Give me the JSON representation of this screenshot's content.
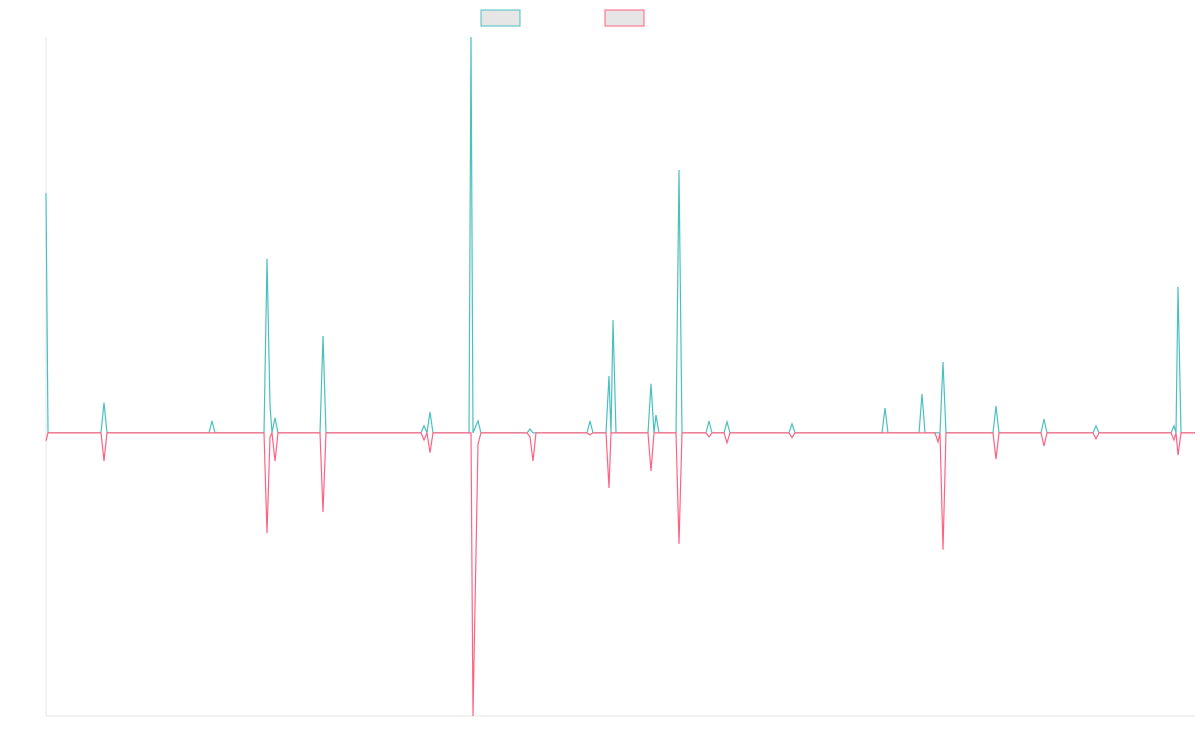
{
  "chart_data": {
    "type": "line",
    "x": [
      0,
      2,
      55,
      58,
      61,
      163,
      166,
      169,
      218,
      221,
      224,
      226,
      229,
      232,
      274,
      277,
      280,
      375,
      378,
      381,
      384,
      387,
      423,
      425,
      427,
      432,
      435,
      481,
      484,
      487,
      490,
      541,
      544,
      547,
      560,
      563,
      565,
      567,
      570,
      602,
      605,
      608,
      610,
      613,
      630,
      633,
      636,
      660,
      663,
      666,
      678,
      681,
      684,
      743,
      746,
      749,
      836,
      839,
      842,
      873,
      876,
      879,
      889,
      892,
      894,
      897,
      900,
      947,
      950,
      953,
      995,
      998,
      1001,
      1047,
      1050,
      1053,
      1125,
      1128,
      1130,
      1132,
      1135,
      1149
    ],
    "series": [
      {
        "color": "#4bc0c0",
        "values": [
          60.6,
          0,
          0,
          7.6,
          0,
          0,
          3,
          0,
          0,
          44,
          7,
          0,
          3.8,
          0,
          0,
          24.5,
          0,
          0,
          1.8,
          0,
          5.3,
          0,
          0,
          100,
          0,
          3,
          0,
          0,
          1,
          0,
          0,
          0,
          3,
          0,
          0,
          14.4,
          0,
          28.5,
          0,
          0,
          12.4,
          0,
          4.5,
          0,
          0,
          66.4,
          0,
          0,
          3,
          0,
          0,
          2.8,
          0,
          0,
          2.3,
          0,
          0,
          6.3,
          0,
          0,
          9.8,
          0,
          0,
          0,
          0,
          17.9,
          0,
          0,
          6.8,
          0,
          0,
          3.5,
          0,
          0,
          1.8,
          0,
          0,
          1.8,
          0,
          36.9,
          0,
          0
        ]
      },
      {
        "color": "#ff6384",
        "values": [
          -2,
          0,
          0,
          -7.1,
          0,
          0,
          0,
          0,
          0,
          -25.3,
          -1,
          0,
          -7.1,
          0,
          0,
          -20,
          0,
          0,
          -1.8,
          0,
          -5,
          0,
          0,
          0,
          -71.5,
          -2.8,
          0,
          0,
          -1,
          -7.1,
          0,
          0,
          -0.5,
          0,
          0,
          -13.9,
          0,
          0,
          0,
          0,
          -9.6,
          0,
          0,
          0,
          0,
          -28,
          0,
          0,
          -1,
          0,
          0,
          -2.5,
          0,
          0,
          -1.2,
          0,
          0,
          0,
          0,
          0,
          0,
          0,
          0,
          -2.3,
          0,
          -29.5,
          0,
          0,
          -6.6,
          0,
          0,
          -3.3,
          0,
          0,
          -1.5,
          0,
          0,
          -1.8,
          0,
          -5.6,
          0,
          0
        ]
      }
    ],
    "xlim": [
      0,
      1149
    ],
    "ylim": [
      -71.5,
      100
    ]
  }
}
